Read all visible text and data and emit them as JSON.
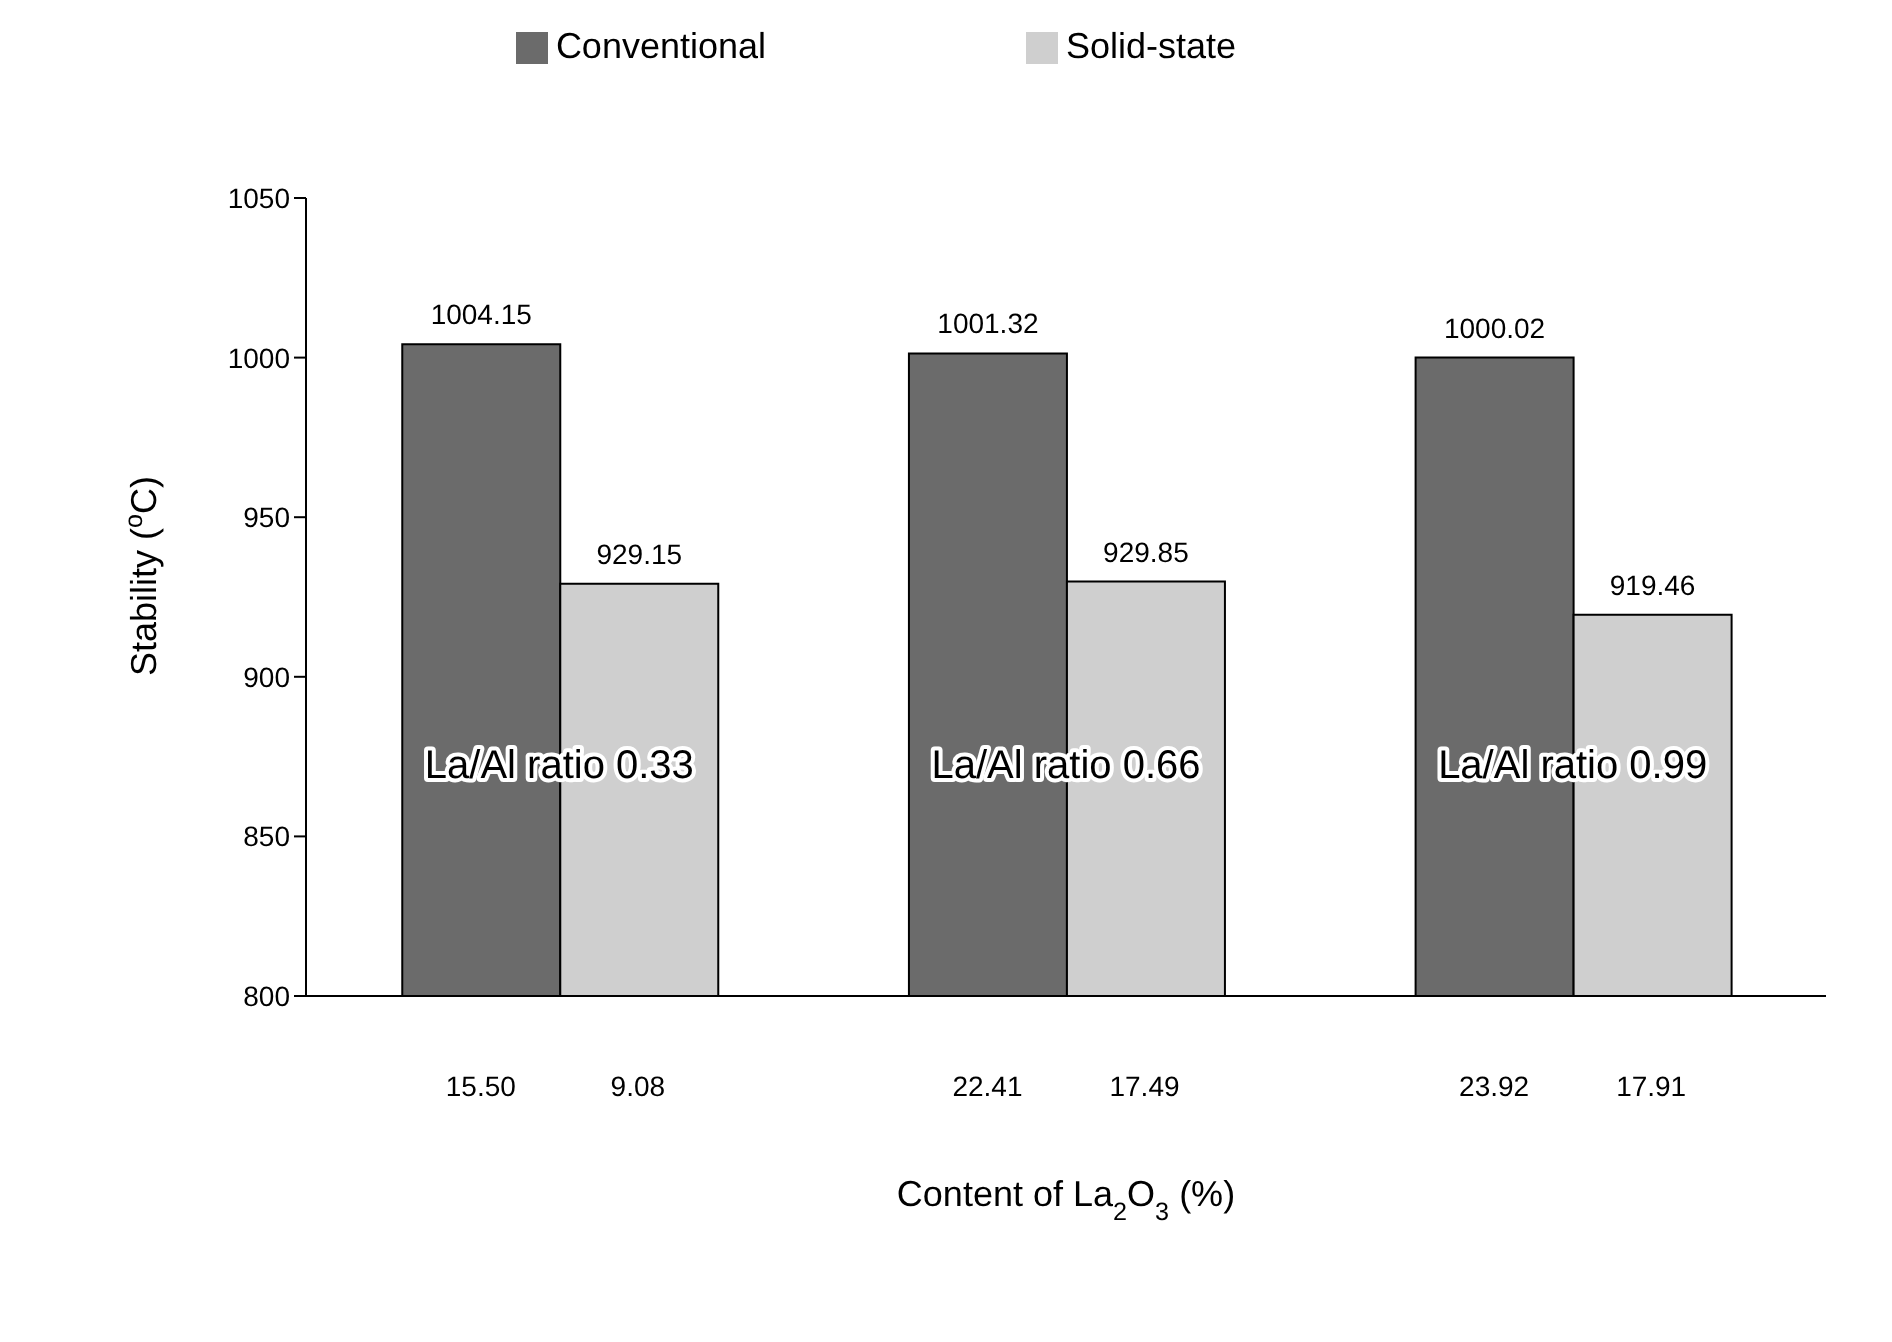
{
  "chart_data": {
    "type": "bar",
    "xlabel": "Content of La$_{2}$O$_{3}$ (%)",
    "ylabel": "Stability ($^{o}$C)",
    "categories": [
      "La/Al ratio 0.33",
      "La/Al ratio 0.66",
      "La/Al ratio 0.99"
    ],
    "series": [
      {
        "name": "Conventional",
        "color": "#6b6b6b",
        "values": [
          1004.15,
          1001.32,
          1000.02
        ]
      },
      {
        "name": "Solid-state",
        "color": "#cfcfcf",
        "values": [
          929.15,
          929.85,
          919.46
        ]
      }
    ],
    "annotations": [
      "15.50",
      "9.08",
      "22.41",
      "17.49",
      "23.92",
      "17.91"
    ],
    "ylim": [
      800,
      1050
    ],
    "yticks": [
      800,
      850,
      900,
      950,
      1000,
      1050
    ],
    "data_labels": true,
    "grid": false,
    "legend": "top"
  }
}
